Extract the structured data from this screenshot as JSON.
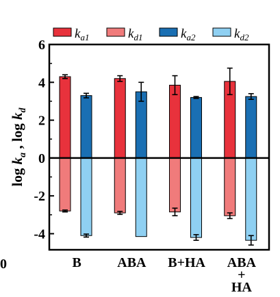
{
  "chart_data": {
    "type": "bar",
    "categories": [
      "B",
      "ABA",
      "B+HA",
      "ABA\n+\nHA"
    ],
    "series": [
      {
        "name": "ka1",
        "color": "#e8323c",
        "values": [
          4.3,
          4.2,
          3.85,
          4.05
        ],
        "errors": [
          0.1,
          0.15,
          0.5,
          0.7
        ]
      },
      {
        "name": "kd1",
        "color": "#f07b7b",
        "values": [
          -2.8,
          -2.9,
          -2.85,
          -3.05
        ],
        "errors": [
          0.05,
          0.08,
          0.2,
          0.15
        ]
      },
      {
        "name": "ka2",
        "color": "#1a6fb3",
        "values": [
          3.3,
          3.5,
          3.2,
          3.25
        ],
        "errors": [
          0.12,
          0.5,
          0.05,
          0.15
        ]
      },
      {
        "name": "kd2",
        "color": "#8fd0f2",
        "values": [
          -4.1,
          -4.15,
          -4.2,
          -4.35
        ],
        "errors": [
          0.08,
          0.0,
          0.15,
          0.25
        ]
      }
    ],
    "legend_labels": [
      "k",
      "a1",
      "k",
      "d1",
      "k",
      "a2",
      "k",
      "d2"
    ],
    "ylabel_parts": [
      "log ",
      "k",
      "a",
      " , log ",
      "k",
      "d"
    ],
    "yticks": [
      "6",
      "4",
      "2",
      "0",
      "-2",
      "-4"
    ],
    "ylim": [
      -4.85,
      6
    ],
    "legend_position": "top",
    "corner_mark": "0",
    "grid": false
  }
}
